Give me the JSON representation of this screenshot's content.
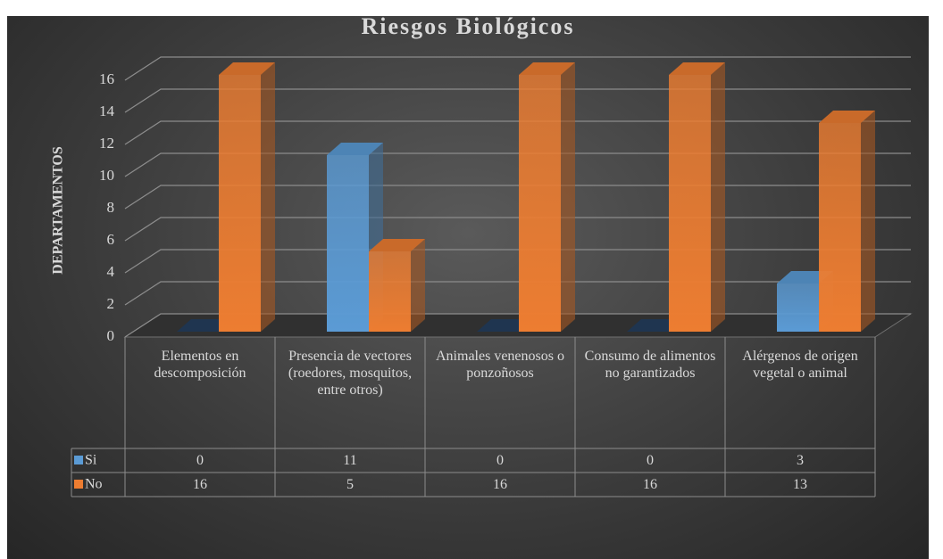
{
  "chart_data": {
    "type": "bar3d",
    "title": "Riesgos Biológicos",
    "y_label": "DEPARTAMENTOS",
    "categories": [
      "Elementos en descomposición",
      "Presencia de vectores (roedores, mosquitos, entre otros)",
      "Animales venenosos o ponzoñosos",
      "Consumo de alimentos no garantizados",
      "Alérgenos de origen vegetal o animal"
    ],
    "series": [
      {
        "name": "Si",
        "color": "#5b9bd5",
        "values": [
          0,
          11,
          0,
          0,
          3
        ]
      },
      {
        "name": "No",
        "color": "#ed7d31",
        "values": [
          16,
          5,
          16,
          16,
          13
        ]
      }
    ],
    "ylim": [
      0,
      16
    ],
    "yticks": [
      0,
      2,
      4,
      6,
      8,
      10,
      12,
      14,
      16
    ],
    "grid": true,
    "data_table": true
  }
}
